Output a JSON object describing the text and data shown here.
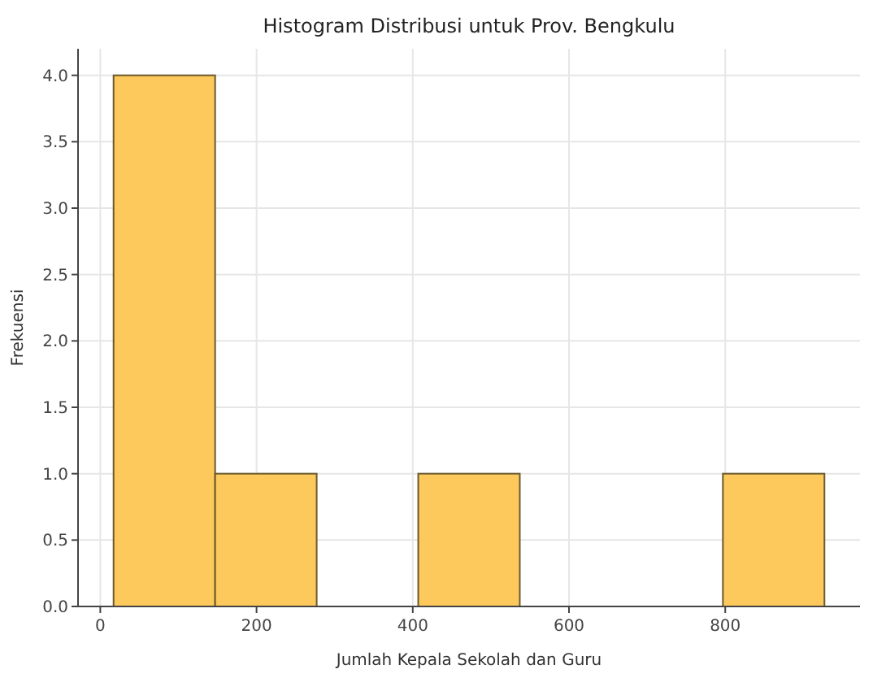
{
  "chart_data": {
    "type": "histogram",
    "title": "Histogram Distribusi untuk Prov. Bengkulu",
    "xlabel": "Jumlah Kepala Sekolah dan Guru",
    "ylabel": "Frekuensi",
    "bins": [
      17,
      147,
      277,
      407,
      537,
      667,
      797,
      927
    ],
    "values": [
      4,
      1,
      0,
      1,
      0,
      0,
      1
    ],
    "color": "#fdc95c",
    "xlim": [
      -28.5,
      972.5
    ],
    "xticks": [
      0,
      200,
      400,
      600,
      800
    ],
    "ylim": [
      0,
      4.2
    ],
    "yticks": [
      {
        "value": 0,
        "label": "0.0"
      },
      {
        "value": 0.5,
        "label": "0.5"
      },
      {
        "value": 1,
        "label": "1.0"
      },
      {
        "value": 1.5,
        "label": "1.5"
      },
      {
        "value": 2,
        "label": "2.0"
      },
      {
        "value": 2.5,
        "label": "2.5"
      },
      {
        "value": 3,
        "label": "3.0"
      },
      {
        "value": 3.5,
        "label": "3.5"
      },
      {
        "value": 4,
        "label": "4.0"
      }
    ],
    "grid": true
  }
}
